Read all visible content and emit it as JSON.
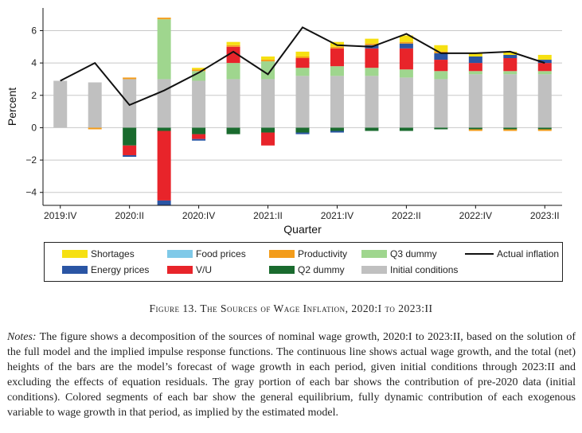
{
  "chart_data": {
    "type": "bar",
    "stacked": true,
    "xlabel": "Quarter",
    "ylabel": "Percent",
    "ylim": [
      -4.8,
      7.4
    ],
    "yticks": [
      6,
      4,
      2,
      0,
      -2,
      -4
    ],
    "ytick_labels": [
      "6",
      "4",
      "2",
      "0",
      "−2",
      "−4"
    ],
    "categories": [
      "2019:IV",
      "2020:I",
      "2020:II",
      "2020:III",
      "2020:IV",
      "2021:I",
      "2021:II",
      "2021:III",
      "2021:IV",
      "2022:I",
      "2022:II",
      "2022:III",
      "2022:IV",
      "2023:I",
      "2023:II"
    ],
    "xtick_labels": [
      {
        "index": 0,
        "label": "2019:IV"
      },
      {
        "index": 2,
        "label": "2020:II"
      },
      {
        "index": 4,
        "label": "2020:IV"
      },
      {
        "index": 6,
        "label": "2021:II"
      },
      {
        "index": 8,
        "label": "2021:IV"
      },
      {
        "index": 10,
        "label": "2022:II"
      },
      {
        "index": 12,
        "label": "2022:IV"
      },
      {
        "index": 14,
        "label": "2023:II"
      }
    ],
    "series": [
      {
        "name": "Initial conditions",
        "color": "#c0c0c0",
        "values": [
          2.9,
          2.8,
          3.0,
          3.0,
          2.9,
          3.0,
          3.0,
          3.2,
          3.2,
          3.2,
          3.1,
          3.0,
          3.3,
          3.3,
          3.3
        ]
      },
      {
        "name": "Q3 dummy",
        "color": "#9fd68e",
        "values": [
          0,
          0,
          0,
          3.7,
          0.6,
          1.0,
          1.1,
          0.5,
          0.6,
          0.5,
          0.5,
          0.5,
          0.2,
          0.2,
          0.2
        ]
      },
      {
        "name": "Q2 dummy",
        "color": "#1a6b2e",
        "values": [
          0,
          0,
          -1.1,
          -0.2,
          -0.4,
          -0.4,
          -0.3,
          -0.3,
          -0.2,
          -0.2,
          -0.2,
          -0.1,
          -0.1,
          -0.1,
          -0.1
        ]
      },
      {
        "name": "V/U",
        "color": "#e8242a",
        "values": [
          0,
          0,
          -0.6,
          -4.3,
          -0.3,
          1.0,
          -0.8,
          0.6,
          1.1,
          1.2,
          1.3,
          0.7,
          0.5,
          0.8,
          0.5
        ]
      },
      {
        "name": "Food prices",
        "color": "#7fc9e8",
        "values": [
          0,
          0,
          0,
          0,
          0,
          0,
          0,
          0,
          0,
          0,
          0,
          0,
          0,
          0,
          0
        ]
      },
      {
        "name": "Energy prices",
        "color": "#2a55a4",
        "values": [
          0,
          0,
          -0.1,
          -0.3,
          -0.1,
          0,
          0,
          -0.1,
          -0.1,
          0.2,
          0.3,
          0.4,
          0.4,
          0.2,
          0.2
        ]
      },
      {
        "name": "Productivity",
        "color": "#f39c1a",
        "values": [
          0,
          -0.1,
          0.1,
          0.1,
          0.1,
          0.1,
          0.1,
          0.1,
          0.1,
          0.1,
          0.1,
          0.1,
          -0.1,
          -0.1,
          -0.1
        ]
      },
      {
        "name": "Shortages",
        "color": "#f6e012",
        "values": [
          0,
          0,
          0,
          0,
          0.1,
          0.2,
          0.2,
          0.3,
          0.3,
          0.3,
          0.4,
          0.4,
          0.2,
          0.2,
          0.3
        ]
      }
    ],
    "line": {
      "name": "Actual inflation",
      "color": "#111111",
      "values": [
        2.9,
        4.0,
        1.4,
        2.3,
        3.4,
        4.7,
        3.3,
        6.2,
        5.1,
        5.0,
        5.8,
        4.6,
        4.6,
        4.7,
        4.0
      ]
    }
  },
  "legend": {
    "items": [
      {
        "label": "Shortages",
        "color": "#f6e012",
        "kind": "swatch"
      },
      {
        "label": "Food prices",
        "color": "#7fc9e8",
        "kind": "swatch"
      },
      {
        "label": "Productivity",
        "color": "#f39c1a",
        "kind": "swatch"
      },
      {
        "label": "Q3 dummy",
        "color": "#9fd68e",
        "kind": "swatch"
      },
      {
        "label": "Actual inflation",
        "color": "#111111",
        "kind": "line"
      },
      {
        "label": "Energy prices",
        "color": "#2a55a4",
        "kind": "swatch"
      },
      {
        "label": "V/U",
        "color": "#e8242a",
        "kind": "swatch"
      },
      {
        "label": "Q2 dummy",
        "color": "#1a6b2e",
        "kind": "swatch"
      },
      {
        "label": "Initial conditions",
        "color": "#c0c0c0",
        "kind": "swatch"
      }
    ]
  },
  "caption": "Figure 13. The Sources of Wage Inflation, 2020:I to 2023:II",
  "notes": {
    "lead": "Notes:",
    "text": " The figure shows a decomposition of the sources of nominal wage growth, 2020:I to 2023:II, based on the solution of the full model and the implied impulse response functions. The continuous line shows actual wage growth, and the total (net) heights of the bars are the model’s forecast of wage growth in each period, given initial conditions through 2023:II and excluding the effects of equation residuals. The gray portion of each bar shows the contribution of pre-2020 data (initial conditions). Colored segments of each bar show the general equilibrium, fully dynamic contribution of each exogenous variable to wage growth in that period, as implied by the estimated model."
  }
}
